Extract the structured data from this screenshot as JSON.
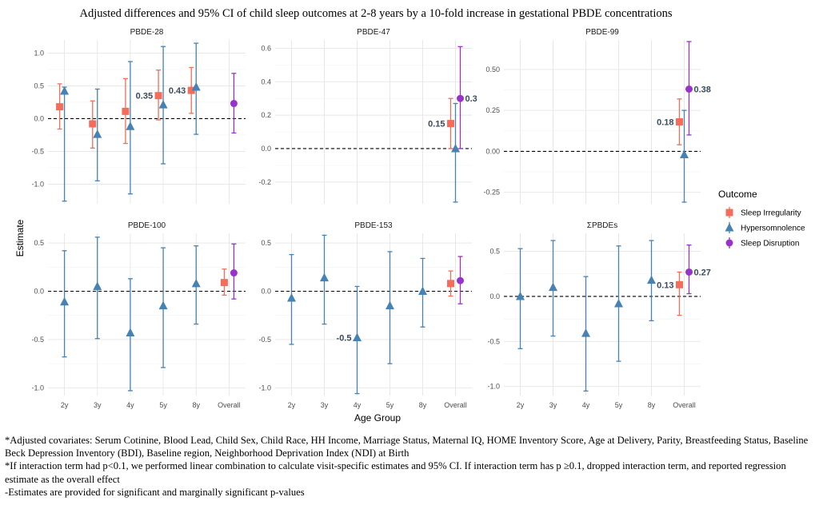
{
  "chart_data": {
    "type": "errorbar",
    "title": "Adjusted differences and 95% CI of child sleep outcomes at 2-8 years by a 10-fold increase in gestational PBDE concentrations",
    "xlabel": "Age Group",
    "ylabel": "Estimate",
    "categories": [
      "2y",
      "3y",
      "4y",
      "5y",
      "8y",
      "Overall"
    ],
    "legend": {
      "title": "Outcome",
      "placement": "right",
      "entries": [
        {
          "name": "Sleep Irregularity",
          "color": "#f46d5a",
          "shape": "square"
        },
        {
          "name": "Hypersomnolence",
          "color": "#4682b4",
          "shape": "triangle"
        },
        {
          "name": "Sleep Disruption",
          "color": "#9932cc",
          "shape": "circle"
        }
      ]
    },
    "panels": [
      {
        "title": "PBDE-28",
        "ylim": [
          -1.3,
          1.2
        ],
        "yticks": [
          -1.0,
          -0.5,
          0.0,
          0.5,
          1.0
        ],
        "ytick_labels": [
          "-1.0",
          "-0.5",
          "0.0",
          "0.5",
          "1.0"
        ],
        "series": [
          {
            "name": "Sleep Irregularity",
            "points": [
              {
                "x": "2y",
                "y": 0.18,
                "lo": -0.16,
                "hi": 0.53
              },
              {
                "x": "3y",
                "y": -0.08,
                "lo": -0.45,
                "hi": 0.27
              },
              {
                "x": "4y",
                "y": 0.11,
                "lo": -0.38,
                "hi": 0.61
              },
              {
                "x": "5y",
                "y": 0.35,
                "lo": -0.02,
                "hi": 0.74,
                "label": "0.35"
              },
              {
                "x": "8y",
                "y": 0.43,
                "lo": 0.08,
                "hi": 0.78,
                "label": "0.43"
              }
            ]
          },
          {
            "name": "Hypersomnolence",
            "points": [
              {
                "x": "2y",
                "y": 0.42,
                "lo": -1.26,
                "hi": 0.48
              },
              {
                "x": "3y",
                "y": -0.24,
                "lo": -0.95,
                "hi": 0.45
              },
              {
                "x": "4y",
                "y": -0.12,
                "lo": -1.15,
                "hi": 0.87
              },
              {
                "x": "5y",
                "y": 0.21,
                "lo": -0.69,
                "hi": 1.1
              },
              {
                "x": "8y",
                "y": 0.48,
                "lo": -0.24,
                "hi": 1.15
              }
            ]
          },
          {
            "name": "Sleep Disruption",
            "points": [
              {
                "x": "Overall",
                "y": 0.23,
                "lo": -0.22,
                "hi": 0.69
              }
            ]
          }
        ]
      },
      {
        "title": "PBDE-47",
        "ylim": [
          -0.33,
          0.65
        ],
        "yticks": [
          -0.2,
          0.0,
          0.2,
          0.4,
          0.6
        ],
        "ytick_labels": [
          "-0.2",
          "0.0",
          "0.2",
          "0.4",
          "0.6"
        ],
        "series": [
          {
            "name": "Sleep Irregularity",
            "points": [
              {
                "x": "Overall",
                "y": 0.15,
                "lo": 0.0,
                "hi": 0.3,
                "label": "0.15"
              }
            ]
          },
          {
            "name": "Hypersomnolence",
            "points": [
              {
                "x": "Overall",
                "y": 0.0,
                "lo": -0.32,
                "hi": 0.27
              }
            ]
          },
          {
            "name": "Sleep Disruption",
            "points": [
              {
                "x": "Overall",
                "y": 0.3,
                "lo": 0.0,
                "hi": 0.61,
                "label": "0.3"
              }
            ]
          }
        ]
      },
      {
        "title": "PBDE-99",
        "ylim": [
          -0.32,
          0.68
        ],
        "yticks": [
          -0.25,
          0.0,
          0.25,
          0.5
        ],
        "ytick_labels": [
          "-0.25",
          "0.00",
          "0.25",
          "0.50"
        ],
        "series": [
          {
            "name": "Sleep Irregularity",
            "points": [
              {
                "x": "Overall",
                "y": 0.18,
                "lo": 0.04,
                "hi": 0.32,
                "label": "0.18"
              }
            ]
          },
          {
            "name": "Hypersomnolence",
            "points": [
              {
                "x": "Overall",
                "y": -0.02,
                "lo": -0.31,
                "hi": 0.25
              }
            ]
          },
          {
            "name": "Sleep Disruption",
            "points": [
              {
                "x": "Overall",
                "y": 0.38,
                "lo": 0.1,
                "hi": 0.67,
                "label": "0.38"
              }
            ]
          }
        ]
      },
      {
        "title": "PBDE-100",
        "ylim": [
          -1.08,
          0.6
        ],
        "yticks": [
          -1.0,
          -0.5,
          0.0,
          0.5
        ],
        "ytick_labels": [
          "-1.0",
          "-0.5",
          "0.0",
          "0.5"
        ],
        "series": [
          {
            "name": "Sleep Irregularity",
            "points": [
              {
                "x": "Overall",
                "y": 0.09,
                "lo": -0.04,
                "hi": 0.23
              }
            ]
          },
          {
            "name": "Hypersomnolence",
            "points": [
              {
                "x": "2y",
                "y": -0.11,
                "lo": -0.68,
                "hi": 0.42
              },
              {
                "x": "3y",
                "y": 0.05,
                "lo": -0.49,
                "hi": 0.56
              },
              {
                "x": "4y",
                "y": -0.43,
                "lo": -1.03,
                "hi": 0.13
              },
              {
                "x": "5y",
                "y": -0.15,
                "lo": -0.79,
                "hi": 0.45
              },
              {
                "x": "8y",
                "y": 0.08,
                "lo": -0.34,
                "hi": 0.47
              }
            ]
          },
          {
            "name": "Sleep Disruption",
            "points": [
              {
                "x": "Overall",
                "y": 0.19,
                "lo": -0.08,
                "hi": 0.49
              }
            ]
          }
        ]
      },
      {
        "title": "PBDE-153",
        "ylim": [
          -1.08,
          0.6
        ],
        "yticks": [
          -1.0,
          -0.5,
          0.0,
          0.5
        ],
        "ytick_labels": [
          "-1.0",
          "-0.5",
          "0.0",
          "0.5"
        ],
        "series": [
          {
            "name": "Sleep Irregularity",
            "points": [
              {
                "x": "Overall",
                "y": 0.08,
                "lo": -0.05,
                "hi": 0.21
              }
            ]
          },
          {
            "name": "Hypersomnolence",
            "points": [
              {
                "x": "2y",
                "y": -0.07,
                "lo": -0.55,
                "hi": 0.38
              },
              {
                "x": "3y",
                "y": 0.14,
                "lo": -0.34,
                "hi": 0.58
              },
              {
                "x": "4y",
                "y": -0.48,
                "lo": -1.06,
                "hi": 0.05,
                "label": "-0.5"
              },
              {
                "x": "5y",
                "y": -0.15,
                "lo": -0.75,
                "hi": 0.41
              },
              {
                "x": "8y",
                "y": 0.0,
                "lo": -0.37,
                "hi": 0.34
              }
            ]
          },
          {
            "name": "Sleep Disruption",
            "points": [
              {
                "x": "Overall",
                "y": 0.11,
                "lo": -0.13,
                "hi": 0.36
              }
            ]
          }
        ]
      },
      {
        "title": "ΣPBDEs",
        "ylim": [
          -1.1,
          0.7
        ],
        "yticks": [
          -1.0,
          -0.5,
          0.0,
          0.5
        ],
        "ytick_labels": [
          "-1.0",
          "-0.5",
          "0.0",
          "0.5"
        ],
        "series": [
          {
            "name": "Sleep Irregularity",
            "points": [
              {
                "x": "Overall",
                "y": 0.13,
                "lo": -0.21,
                "hi": 0.27,
                "label": "0.13"
              }
            ]
          },
          {
            "name": "Hypersomnolence",
            "points": [
              {
                "x": "2y",
                "y": 0.0,
                "lo": -0.58,
                "hi": 0.53
              },
              {
                "x": "3y",
                "y": 0.1,
                "lo": -0.44,
                "hi": 0.62
              },
              {
                "x": "4y",
                "y": -0.41,
                "lo": -1.05,
                "hi": 0.22
              },
              {
                "x": "5y",
                "y": -0.08,
                "lo": -0.72,
                "hi": 0.56
              },
              {
                "x": "8y",
                "y": 0.18,
                "lo": -0.27,
                "hi": 0.62
              }
            ]
          },
          {
            "name": "Sleep Disruption",
            "points": [
              {
                "x": "Overall",
                "y": 0.27,
                "lo": 0.03,
                "hi": 0.57,
                "label": "0.27"
              }
            ]
          }
        ]
      }
    ]
  },
  "notes": [
    "*Adjusted covariates: Serum Cotinine, Blood Lead, Child Sex, Child Race, HH Income, Marriage Status, Maternal IQ, HOME Inventory Score, Age at Delivery, Parity, Breastfeeding Status, Baseline Beck Depression Inventory (BDI), Baseline region,  Neighborhood Deprivation Index (NDI) at Birth",
    "*If interaction term had p<0.1, we performed linear combination to calculate visit-specific estimates and 95% CI. If interaction term has p ≥0.1, dropped interaction term, and reported regression estimate as the overall effect",
    "-Estimates are provided for significant and marginally significant p-values"
  ]
}
